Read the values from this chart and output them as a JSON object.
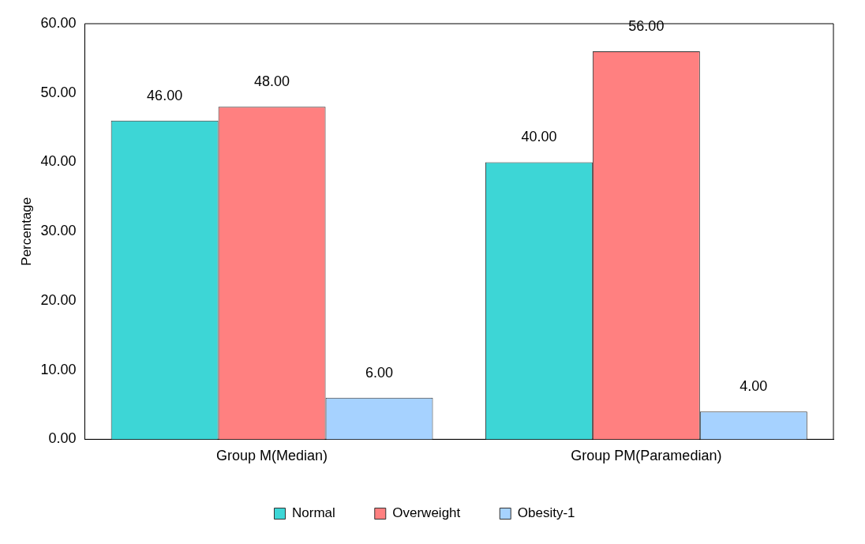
{
  "chart_data": {
    "type": "bar",
    "ylabel": "Percentage",
    "categories": [
      "Group M(Median)",
      "Group PM(Paramedian)"
    ],
    "series": [
      {
        "name": "Normal",
        "color": "#3dd6d6",
        "values": [
          46,
          40
        ],
        "value_labels": [
          "46.00",
          "40.00"
        ]
      },
      {
        "name": "Overweight",
        "color": "#ff8080",
        "values": [
          48,
          56
        ],
        "value_labels": [
          "48.00",
          "56.00"
        ]
      },
      {
        "name": "Obesity-1",
        "color": "#a6d2ff",
        "values": [
          6,
          4
        ],
        "value_labels": [
          "6.00",
          "4.00"
        ]
      }
    ],
    "ylim": [
      0,
      60
    ],
    "yticks": [
      {
        "value": 0,
        "label": "0.00"
      },
      {
        "value": 10,
        "label": "10.00"
      },
      {
        "value": 20,
        "label": "20.00"
      },
      {
        "value": 30,
        "label": "30.00"
      },
      {
        "value": 40,
        "label": "40.00"
      },
      {
        "value": 50,
        "label": "50.00"
      },
      {
        "value": 60,
        "label": "60.00"
      }
    ],
    "grid": false,
    "legend": "bottom"
  }
}
